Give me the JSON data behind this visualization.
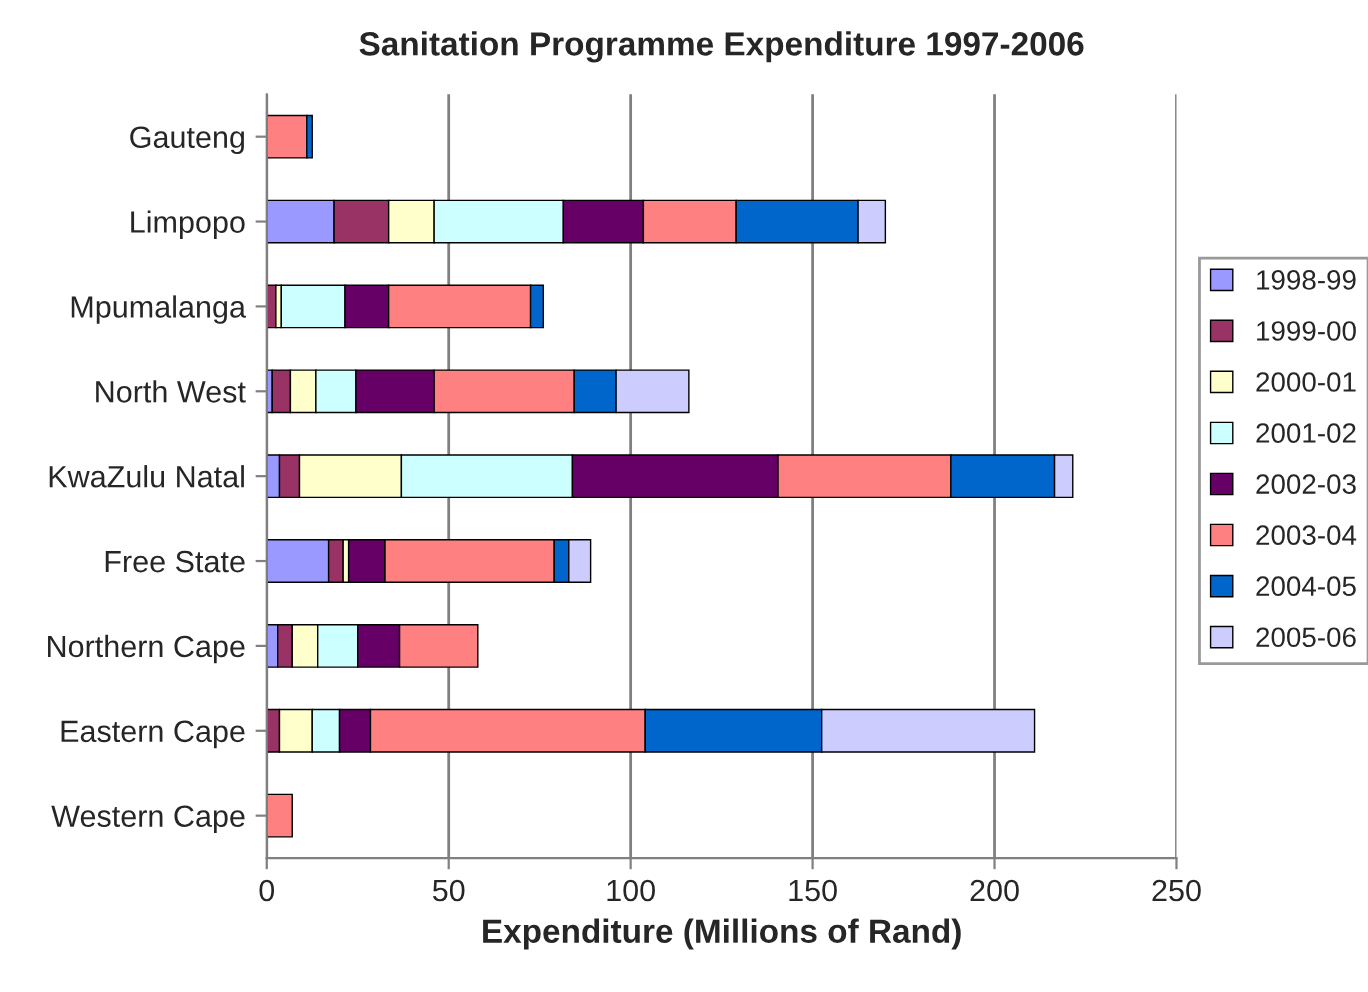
{
  "chart_data": {
    "type": "bar",
    "orientation": "horizontal",
    "stacked": true,
    "title": "Sanitation Programme Expenditure 1997-2006",
    "xlabel": "Expenditure (Millions of Rand)",
    "categories": [
      "Gauteng",
      "Limpopo",
      "Mpumalanga",
      "North West",
      "KwaZulu Natal",
      "Free State",
      "Northern Cape",
      "Eastern Cape",
      "Western Cape"
    ],
    "series": [
      {
        "name": "1998-99",
        "color": "#9999ff",
        "values": [
          null,
          18.5,
          null,
          1.5,
          3.5,
          17,
          3,
          null,
          null
        ]
      },
      {
        "name": "1999-00",
        "color": "#993366",
        "values": [
          null,
          15,
          2.5,
          5,
          5.5,
          4,
          4,
          3.5,
          null
        ]
      },
      {
        "name": "2000-01",
        "color": "#ffffcc",
        "values": [
          null,
          12.5,
          1.5,
          7,
          28,
          1.5,
          7,
          9,
          null
        ]
      },
      {
        "name": "2001-02",
        "color": "#ccffff",
        "values": [
          null,
          35.5,
          17.5,
          11,
          47,
          null,
          11,
          7.5,
          null
        ]
      },
      {
        "name": "2002-03",
        "color": "#660066",
        "values": [
          null,
          22,
          12,
          21.5,
          56.5,
          10,
          11.5,
          8.5,
          null
        ]
      },
      {
        "name": "2003-04",
        "color": "#ff8080",
        "values": [
          11,
          25.5,
          39,
          38.5,
          47.5,
          46.5,
          21.5,
          75.5,
          7
        ]
      },
      {
        "name": "2004-05",
        "color": "#0066cc",
        "values": [
          1.5,
          33.5,
          3.5,
          11.5,
          28.5,
          4,
          null,
          48.5,
          null
        ]
      },
      {
        "name": "2005-06",
        "color": "#ccccff",
        "values": [
          null,
          7.5,
          null,
          20,
          5,
          6,
          null,
          58.5,
          null
        ]
      }
    ],
    "xlim": [
      0,
      250
    ],
    "xticks": [
      0,
      50,
      100,
      150,
      200,
      250
    ],
    "grid": "x",
    "legend": "right"
  }
}
